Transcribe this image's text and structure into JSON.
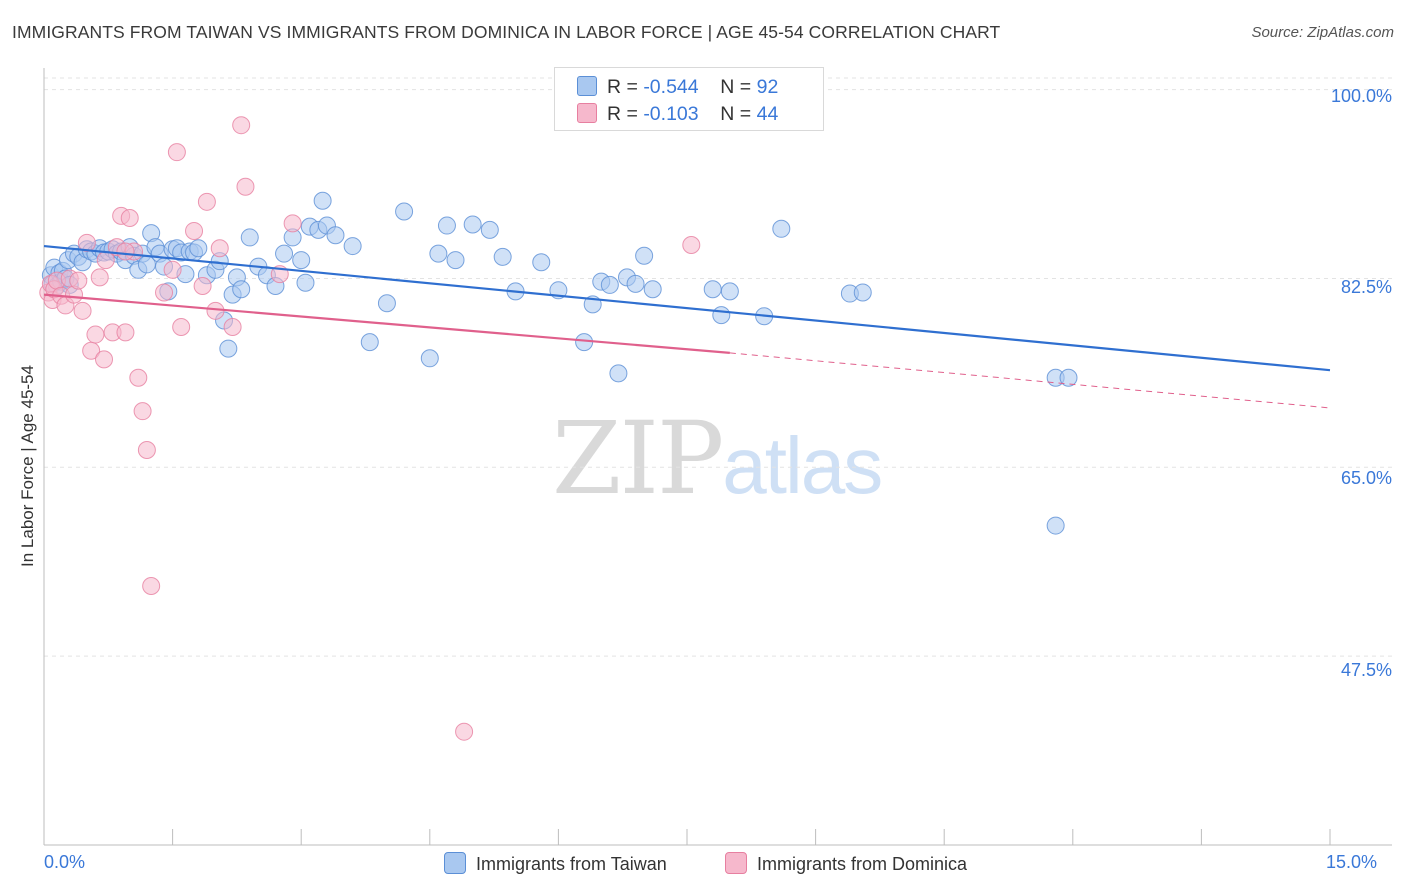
{
  "title": "IMMIGRANTS FROM TAIWAN VS IMMIGRANTS FROM DOMINICA IN LABOR FORCE | AGE 45-54 CORRELATION CHART",
  "source": "Source: ZipAtlas.com",
  "watermark": {
    "zip": "ZIP",
    "atlas": "atlas"
  },
  "legend": {
    "rows": [
      {
        "r_label": "R = ",
        "r_value": "-0.544",
        "n_label": "N = ",
        "n_value": "92"
      },
      {
        "r_label": "R = ",
        "r_value": " -0.103",
        "n_label": "N = ",
        "n_value": "44"
      }
    ]
  },
  "colors": {
    "taiwan_fill": "#a9c8f0",
    "taiwan_stroke": "#5b8fd6",
    "taiwan_line": "#2f6fd0",
    "dominica_fill": "#f6b8cc",
    "dominica_stroke": "#e77fa0",
    "dominica_line": "#e0608c",
    "axis_text": "#3a78d8",
    "grid": "#e3e3e3"
  },
  "chart_data": {
    "type": "scatter",
    "title": "IMMIGRANTS FROM TAIWAN VS IMMIGRANTS FROM DOMINICA IN LABOR FORCE | AGE 45-54 CORRELATION CHART",
    "xlabel": "",
    "ylabel": "In Labor Force | Age 45-54",
    "xlim": [
      0,
      15
    ],
    "ylim": [
      30,
      102
    ],
    "x_tick_labels": [
      "0.0%",
      "15.0%"
    ],
    "y_ticks": [
      100,
      82.5,
      65,
      47.5
    ],
    "y_tick_labels": [
      "100.0%",
      "82.5%",
      "65.0%",
      "47.5%"
    ],
    "series": [
      {
        "name": "Immigrants from Taiwan",
        "r": -0.544,
        "n": 92,
        "trend": {
          "x0": 0,
          "y0": 85.5,
          "x1": 15,
          "y1": 74.0
        },
        "points": [
          [
            0.08,
            82.8
          ],
          [
            0.1,
            82.0
          ],
          [
            0.12,
            83.5
          ],
          [
            0.15,
            81.8
          ],
          [
            0.18,
            83.0
          ],
          [
            0.2,
            82.2
          ],
          [
            0.22,
            83.2
          ],
          [
            0.25,
            82.5
          ],
          [
            0.28,
            84.2
          ],
          [
            0.3,
            81.9
          ],
          [
            0.35,
            84.8
          ],
          [
            0.4,
            84.5
          ],
          [
            0.45,
            84.0
          ],
          [
            0.5,
            85.2
          ],
          [
            0.55,
            85.0
          ],
          [
            0.6,
            84.8
          ],
          [
            0.65,
            85.3
          ],
          [
            0.7,
            84.9
          ],
          [
            0.75,
            85.0
          ],
          [
            0.8,
            85.2
          ],
          [
            0.85,
            84.8
          ],
          [
            0.9,
            85.0
          ],
          [
            0.95,
            84.2
          ],
          [
            1.0,
            85.4
          ],
          [
            1.05,
            84.6
          ],
          [
            1.1,
            83.3
          ],
          [
            1.15,
            84.8
          ],
          [
            1.2,
            83.8
          ],
          [
            1.25,
            86.7
          ],
          [
            1.3,
            85.4
          ],
          [
            1.35,
            84.8
          ],
          [
            1.4,
            83.6
          ],
          [
            1.45,
            81.3
          ],
          [
            1.5,
            85.2
          ],
          [
            1.55,
            85.3
          ],
          [
            1.6,
            84.9
          ],
          [
            1.65,
            82.9
          ],
          [
            1.7,
            85.0
          ],
          [
            1.75,
            84.9
          ],
          [
            1.8,
            85.3
          ],
          [
            1.9,
            82.8
          ],
          [
            2.0,
            83.3
          ],
          [
            2.05,
            84.1
          ],
          [
            2.1,
            78.6
          ],
          [
            2.15,
            76.0
          ],
          [
            2.2,
            81.0
          ],
          [
            2.25,
            82.6
          ],
          [
            2.3,
            81.5
          ],
          [
            2.4,
            86.3
          ],
          [
            2.5,
            83.6
          ],
          [
            2.6,
            82.8
          ],
          [
            2.7,
            81.8
          ],
          [
            2.8,
            84.8
          ],
          [
            2.9,
            86.3
          ],
          [
            3.0,
            84.2
          ],
          [
            3.05,
            82.1
          ],
          [
            3.1,
            87.3
          ],
          [
            3.2,
            87.0
          ],
          [
            3.25,
            89.7
          ],
          [
            3.3,
            87.4
          ],
          [
            3.4,
            86.5
          ],
          [
            3.6,
            85.5
          ],
          [
            3.8,
            76.6
          ],
          [
            4.0,
            80.2
          ],
          [
            4.2,
            88.7
          ],
          [
            4.5,
            75.1
          ],
          [
            4.6,
            84.8
          ],
          [
            4.7,
            87.4
          ],
          [
            4.8,
            84.2
          ],
          [
            5.0,
            87.5
          ],
          [
            5.2,
            87.0
          ],
          [
            5.35,
            84.5
          ],
          [
            5.5,
            81.3
          ],
          [
            5.8,
            84.0
          ],
          [
            6.0,
            81.4
          ],
          [
            6.3,
            76.6
          ],
          [
            6.4,
            80.1
          ],
          [
            6.5,
            82.2
          ],
          [
            6.6,
            81.9
          ],
          [
            6.7,
            73.7
          ],
          [
            6.8,
            82.6
          ],
          [
            6.9,
            82.0
          ],
          [
            7.0,
            84.6
          ],
          [
            7.1,
            81.5
          ],
          [
            7.8,
            81.5
          ],
          [
            7.9,
            79.1
          ],
          [
            8.0,
            81.3
          ],
          [
            8.4,
            79.0
          ],
          [
            8.6,
            87.1
          ],
          [
            9.4,
            81.1
          ],
          [
            9.55,
            81.2
          ],
          [
            11.8,
            73.3
          ],
          [
            11.95,
            73.3
          ],
          [
            11.8,
            59.6
          ]
        ]
      },
      {
        "name": "Immigrants from Dominica",
        "r": -0.103,
        "n": 44,
        "trend": {
          "x0": 0,
          "y0": 81.0,
          "x1": 8.0,
          "y1": 75.6,
          "dash_x1": 15,
          "dash_y1": 70.5
        },
        "points": [
          [
            0.05,
            81.2
          ],
          [
            0.08,
            82.0
          ],
          [
            0.1,
            80.5
          ],
          [
            0.12,
            81.5
          ],
          [
            0.15,
            82.3
          ],
          [
            0.2,
            80.9
          ],
          [
            0.25,
            80.0
          ],
          [
            0.3,
            82.5
          ],
          [
            0.35,
            81.0
          ],
          [
            0.4,
            82.3
          ],
          [
            0.45,
            79.5
          ],
          [
            0.5,
            85.8
          ],
          [
            0.55,
            75.8
          ],
          [
            0.6,
            77.3
          ],
          [
            0.65,
            82.6
          ],
          [
            0.7,
            75.0
          ],
          [
            0.72,
            84.2
          ],
          [
            0.8,
            77.5
          ],
          [
            0.85,
            85.4
          ],
          [
            0.9,
            88.3
          ],
          [
            0.95,
            77.5
          ],
          [
            1.0,
            88.1
          ],
          [
            1.05,
            85.0
          ],
          [
            1.1,
            73.3
          ],
          [
            1.15,
            70.2
          ],
          [
            1.2,
            66.6
          ],
          [
            1.25,
            54.0
          ],
          [
            1.4,
            81.2
          ],
          [
            1.5,
            83.3
          ],
          [
            1.55,
            94.2
          ],
          [
            1.6,
            78.0
          ],
          [
            1.75,
            86.9
          ],
          [
            1.85,
            81.8
          ],
          [
            1.9,
            89.6
          ],
          [
            2.0,
            79.5
          ],
          [
            2.05,
            85.3
          ],
          [
            2.2,
            78.0
          ],
          [
            2.3,
            96.7
          ],
          [
            2.35,
            91.0
          ],
          [
            2.75,
            82.9
          ],
          [
            2.9,
            87.6
          ],
          [
            4.9,
            40.5
          ],
          [
            7.55,
            85.6
          ],
          [
            0.95,
            85.0
          ]
        ]
      }
    ]
  },
  "bottom_legend": {
    "taiwan": "Immigrants from Taiwan",
    "dominica": "Immigrants from Dominica"
  }
}
